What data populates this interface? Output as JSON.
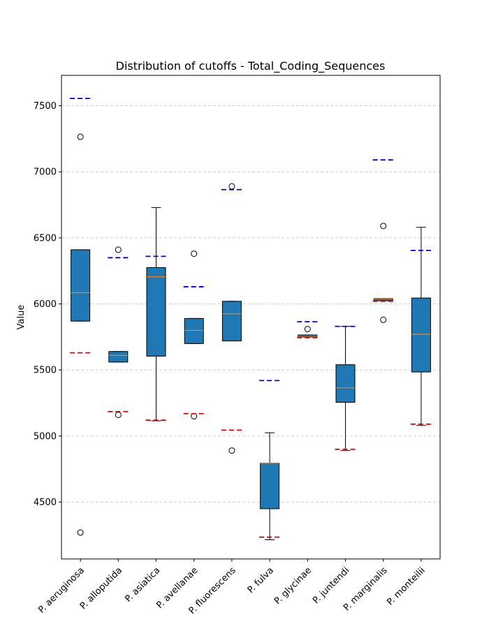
{
  "chart_data": {
    "type": "boxplot",
    "title": "Distribution of cutoffs - Total_Coding_Sequences",
    "xlabel": "",
    "ylabel": "Value",
    "ylim": [
      4070,
      7730
    ],
    "yticks": [
      4500,
      5000,
      5500,
      6000,
      6500,
      7000,
      7500
    ],
    "grid": "y-dashed",
    "colors": {
      "box_fill": "#1f77b4",
      "median": "#ff7f0e",
      "upper_cutoff": "#0000cc",
      "lower_cutoff": "#dd0000",
      "grid": "#cccccc"
    },
    "series": [
      {
        "name": "P. aeruginosa",
        "whisker_low": 5870,
        "q1": 5870,
        "median": 6085,
        "q3": 6410,
        "whisker_high": 6410,
        "outliers": [
          7265,
          4270
        ],
        "upper_cutoff": 7555,
        "lower_cutoff": 5630
      },
      {
        "name": "P. alloputida",
        "whisker_low": 5560,
        "q1": 5560,
        "median": 5610,
        "q3": 5640,
        "whisker_high": 5640,
        "outliers": [
          6410,
          5160
        ],
        "upper_cutoff": 6350,
        "lower_cutoff": 5185
      },
      {
        "name": "P. asiatica",
        "whisker_low": 5115,
        "q1": 5605,
        "median": 6205,
        "q3": 6275,
        "whisker_high": 6730,
        "outliers": [],
        "upper_cutoff": 6360,
        "lower_cutoff": 5120
      },
      {
        "name": "P. avellanae",
        "whisker_low": 5700,
        "q1": 5700,
        "median": 5800,
        "q3": 5890,
        "whisker_high": 5890,
        "outliers": [
          6380,
          5150
        ],
        "upper_cutoff": 6130,
        "lower_cutoff": 5170
      },
      {
        "name": "P. fluorescens",
        "whisker_low": 5720,
        "q1": 5720,
        "median": 5925,
        "q3": 6020,
        "whisker_high": 6020,
        "outliers": [
          6890,
          4890
        ],
        "upper_cutoff": 6865,
        "lower_cutoff": 5045
      },
      {
        "name": "P. fulva",
        "whisker_low": 4215,
        "q1": 4450,
        "median": 4795,
        "q3": 4795,
        "whisker_high": 5025,
        "outliers": [],
        "upper_cutoff": 5420,
        "lower_cutoff": 4235
      },
      {
        "name": "P. glycinae",
        "whisker_low": 5750,
        "q1": 5750,
        "median": 5755,
        "q3": 5765,
        "whisker_high": 5765,
        "outliers": [
          5810
        ],
        "upper_cutoff": 5865,
        "lower_cutoff": 5745
      },
      {
        "name": "P. juntendi",
        "whisker_low": 4890,
        "q1": 5255,
        "median": 5365,
        "q3": 5540,
        "whisker_high": 5830,
        "outliers": [],
        "upper_cutoff": 5830,
        "lower_cutoff": 4900
      },
      {
        "name": "P. marginalis",
        "whisker_low": 6025,
        "q1": 6025,
        "median": 6035,
        "q3": 6040,
        "whisker_high": 6040,
        "outliers": [
          6590,
          5880
        ],
        "upper_cutoff": 7090,
        "lower_cutoff": 6020
      },
      {
        "name": "P. monteilii",
        "whisker_low": 5080,
        "q1": 5485,
        "median": 5770,
        "q3": 6045,
        "whisker_high": 6580,
        "outliers": [],
        "upper_cutoff": 6405,
        "lower_cutoff": 5090
      }
    ]
  }
}
